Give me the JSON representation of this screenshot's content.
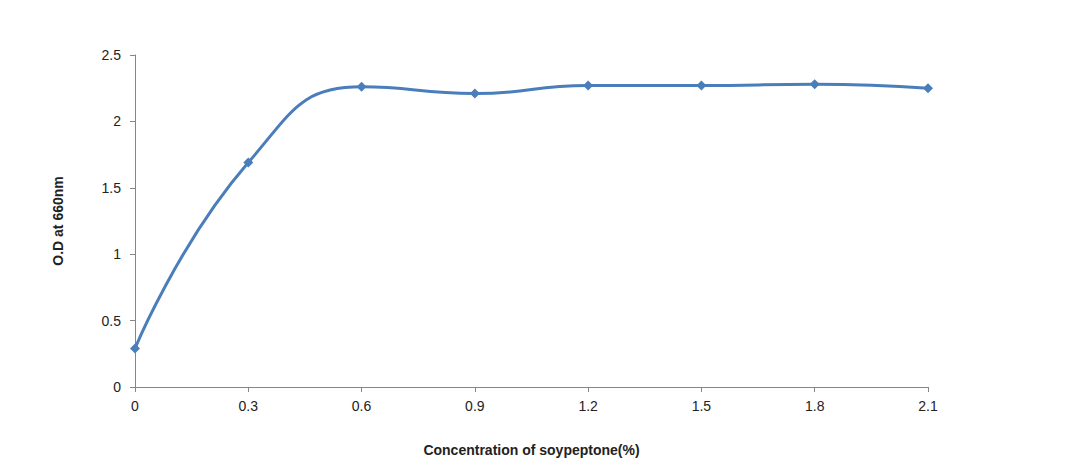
{
  "chart_data": {
    "type": "line",
    "x_label": "Concentration of soypeptone(%)",
    "y_label": "O.D at 660nm",
    "x": [
      0,
      0.3,
      0.6,
      0.9,
      1.2,
      1.5,
      1.8,
      2.1
    ],
    "values": [
      0.29,
      1.69,
      2.26,
      2.21,
      2.27,
      2.27,
      2.28,
      2.25
    ],
    "color": "#4a7ebb",
    "marker": "diamond",
    "line_style": "smooth",
    "xlim": [
      0,
      2.1
    ],
    "xticks": [
      0,
      0.3,
      0.6,
      0.9,
      1.2,
      1.5,
      1.8,
      2.1
    ],
    "ylim": [
      0,
      2.5
    ],
    "yticks": [
      0,
      0.5,
      1,
      1.5,
      2,
      2.5
    ],
    "grid": false
  }
}
